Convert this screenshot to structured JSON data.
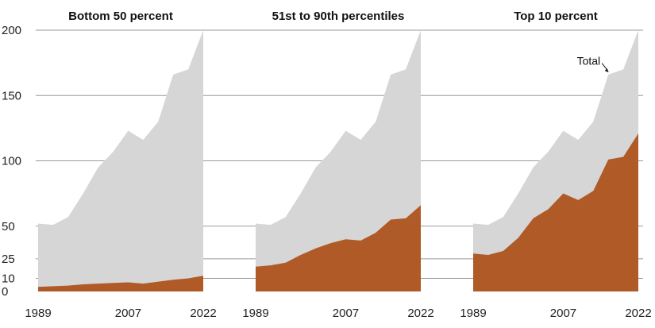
{
  "chart_data": {
    "type": "area",
    "colors": {
      "total": "#d6d6d6",
      "share": "#b05a27"
    },
    "x": [
      1989,
      1992,
      1995,
      1998,
      2001,
      2004,
      2007,
      2010,
      2013,
      2016,
      2019,
      2022
    ],
    "x_ticks": [
      "1989",
      "2007",
      "2022"
    ],
    "y_ticks": [
      "0",
      "10",
      "25",
      "50",
      "100",
      "150",
      "200"
    ],
    "ylim": [
      0,
      200
    ],
    "grid": true,
    "annotation": {
      "text": "Total",
      "panel": 2,
      "x": 2016,
      "y": 168
    },
    "total": [
      52,
      51,
      57,
      75,
      95,
      107,
      123,
      116,
      130,
      166,
      170,
      200
    ],
    "panels": [
      {
        "title": "Bottom 50 percent",
        "series": [
          {
            "values": [
              52,
              51,
              57,
              75,
              95,
              107,
              123,
              116,
              130,
              166,
              170,
              200
            ]
          },
          {
            "values": [
              3.5,
              4,
              4.5,
              5.5,
              6,
              6.5,
              7,
              6,
              7.5,
              9,
              10,
              12
            ]
          }
        ]
      },
      {
        "title": "51st to 90th percentiles",
        "series": [
          {
            "values": [
              52,
              51,
              57,
              75,
              95,
              107,
              123,
              116,
              130,
              166,
              170,
              200
            ]
          },
          {
            "values": [
              19,
              20,
              22,
              28,
              33,
              37,
              40,
              39,
              45,
              55,
              56,
              66
            ]
          }
        ]
      },
      {
        "title": "Top 10 percent",
        "series": [
          {
            "values": [
              52,
              51,
              57,
              75,
              95,
              107,
              123,
              116,
              130,
              166,
              170,
              200
            ]
          },
          {
            "values": [
              29,
              28,
              31,
              41,
              56,
              63,
              75,
              70,
              77,
              101,
              103,
              121
            ]
          }
        ]
      }
    ]
  }
}
